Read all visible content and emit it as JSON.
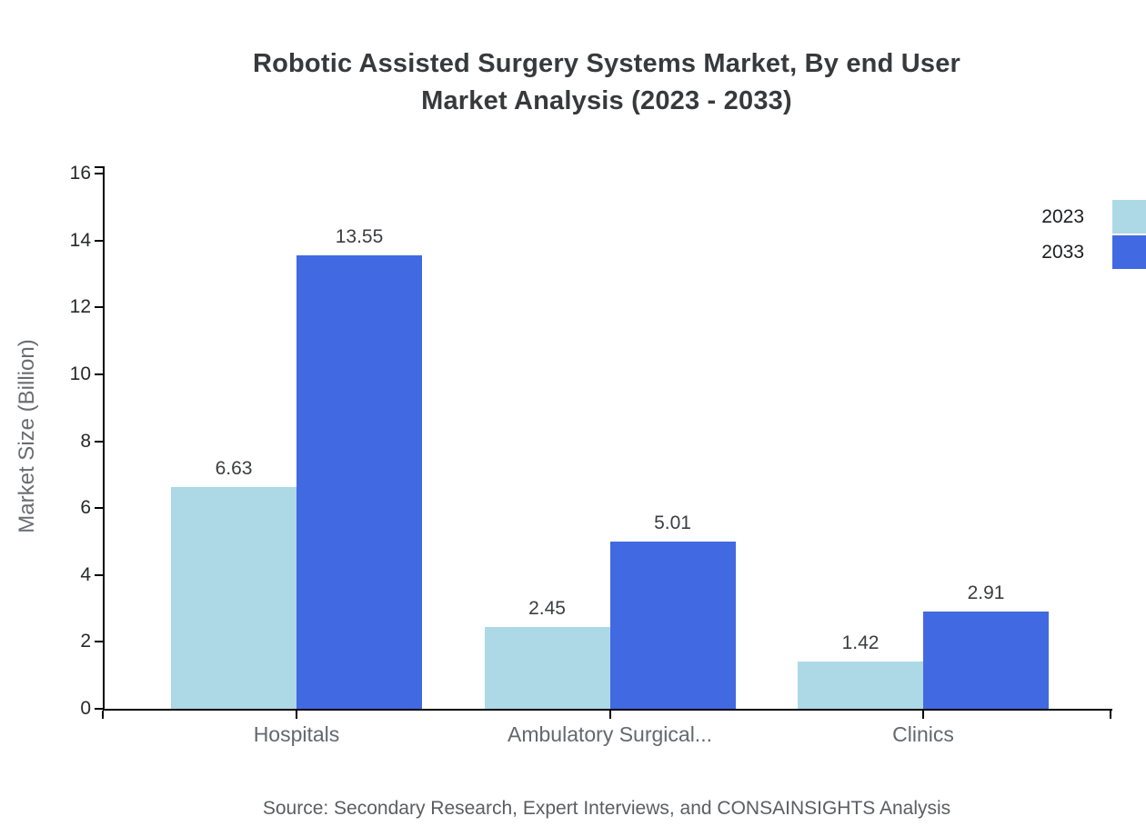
{
  "title": {
    "line1": "Robotic Assisted Surgery Systems Market, By end User",
    "line2": "Market Analysis (2023 - 2033)"
  },
  "chart_data": {
    "type": "bar",
    "categories": [
      "Hospitals",
      "Ambulatory Surgical...",
      "Clinics"
    ],
    "series": [
      {
        "name": "2023",
        "color": "#ADD8E6",
        "values": [
          6.63,
          2.45,
          1.42
        ]
      },
      {
        "name": "2033",
        "color": "#4169E1",
        "values": [
          13.55,
          5.01,
          2.91
        ]
      }
    ],
    "title": "Robotic Assisted Surgery Systems Market, By end User Market Analysis (2023 - 2033)",
    "xlabel": "",
    "ylabel": "Market Size (Billion)",
    "ylim": [
      0,
      16
    ],
    "ytick_step": 2,
    "grid": false,
    "legend_position": "top-right",
    "value_labels": true
  },
  "source": "Source: Secondary Research, Expert Interviews, and CONSAINSIGHTS Analysis"
}
